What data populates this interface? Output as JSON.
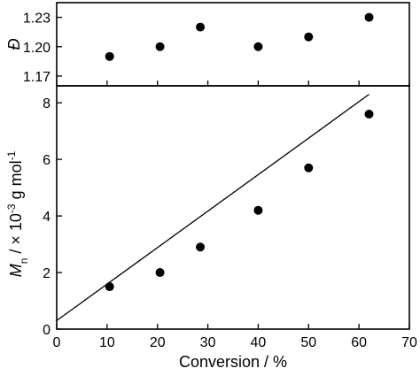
{
  "chart_data": [
    {
      "type": "scatter",
      "panel": "top",
      "ylabel": "Đ",
      "ylim": [
        1.16,
        1.245
      ],
      "yticks": [
        1.17,
        1.2,
        1.23
      ],
      "ytick_labels": [
        "1.17",
        "1.20",
        "1.23"
      ],
      "xlim": [
        0,
        70
      ],
      "series": [
        {
          "x": [
            10.5,
            20.5,
            28.5,
            40,
            50,
            62
          ],
          "y": [
            1.19,
            1.2,
            1.22,
            1.2,
            1.21,
            1.23
          ]
        }
      ],
      "grid": false
    },
    {
      "type": "scatter",
      "panel": "bottom",
      "xlabel": "Conversion / %",
      "ylabel_parts": {
        "m": "M",
        "sub": "n",
        "mid": " / × 10",
        "sup1": "-3",
        "unit": " g mol",
        "sup2": "-1"
      },
      "xlim": [
        0,
        70
      ],
      "ylim": [
        0,
        8.6
      ],
      "xticks": [
        0,
        10,
        20,
        30,
        40,
        50,
        60,
        70
      ],
      "xtick_labels": [
        "0",
        "10",
        "20",
        "30",
        "40",
        "50",
        "60",
        "70"
      ],
      "yticks": [
        0,
        2,
        4,
        6,
        8
      ],
      "ytick_labels": [
        "0",
        "2",
        "4",
        "6",
        "8"
      ],
      "series": [
        {
          "x": [
            10.5,
            20.5,
            28.5,
            40,
            50,
            62
          ],
          "y": [
            1.5,
            2.0,
            2.9,
            4.2,
            5.7,
            7.6
          ]
        }
      ],
      "fit_line": {
        "x": [
          0,
          62
        ],
        "y": [
          0.3,
          8.3
        ]
      },
      "grid": false
    }
  ]
}
